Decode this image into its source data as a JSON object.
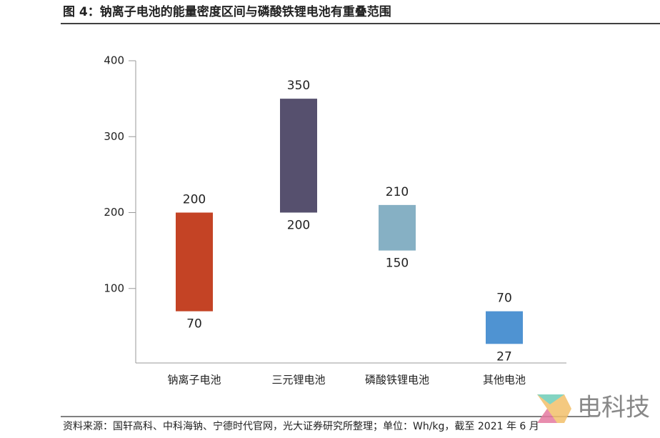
{
  "chart_data": {
    "type": "floating_bar",
    "title": "图 4：钠离子电池的能量密度区间与磷酸铁锂电池有重叠范围",
    "categories": [
      "钠离子电池",
      "三元锂电池",
      "磷酸铁锂电池",
      "其他电池"
    ],
    "low": [
      70,
      200,
      150,
      27
    ],
    "high": [
      200,
      350,
      210,
      70
    ],
    "colors": [
      "#c44325",
      "#56506e",
      "#86b0c4",
      "#4f93d2"
    ],
    "ylim": [
      0,
      400
    ],
    "yticks": [
      100,
      200,
      300,
      400
    ],
    "source": "资料来源：国轩高科、中科海钠、宁德时代官网，光大证券研究所整理；单位：Wh/kg，截至 2021 年 6 月",
    "watermark": "电科技"
  }
}
